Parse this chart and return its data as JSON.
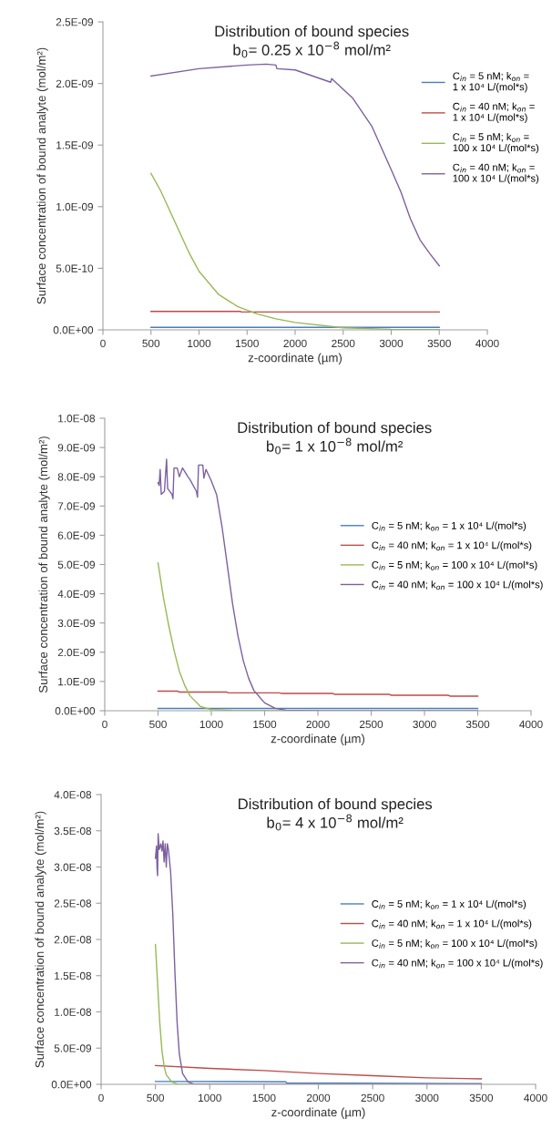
{
  "chart_data": [
    {
      "type": "line",
      "title": "Distribution of bound species",
      "subtitle": "b$_{0}$= 0.25 x 10$^{−8}$ mol/m²",
      "xlabel": "z-coordinate (µm)",
      "ylabel": "Surface concentration of bound analyte (mol/m²)",
      "xlim": [
        0,
        4000
      ],
      "xticks": [
        0,
        500,
        1000,
        1500,
        2000,
        2500,
        3000,
        3500,
        4000
      ],
      "ylim": [
        0,
        2.5e-09
      ],
      "yticks": [
        {
          "value": 0,
          "label": "0.0E+00"
        },
        {
          "value": 5e-10,
          "label": "5.0E-10"
        },
        {
          "value": 1e-09,
          "label": "1.0E-09"
        },
        {
          "value": 1.5e-09,
          "label": "1.5E-09"
        },
        {
          "value": 2e-09,
          "label": "2.0E-09"
        },
        {
          "value": 2.5e-09,
          "label": "2.5E-09"
        }
      ],
      "grid": false,
      "legend": "right",
      "marker": "none",
      "line_style": "solid",
      "series": [
        {
          "name": "C$_{in}$ = 5 nM; k$_{on}$ =\n1 x 10⁴ L/(mol*s)",
          "color": "#4a7ebb",
          "x": [
            500,
            3500
          ],
          "values": [
            2e-11,
            2e-11
          ]
        },
        {
          "name": "C$_{in}$ = 40 nM; k$_{on}$ =\n1 x 10⁴ L/(mol*s)",
          "color": "#be4b48",
          "x": [
            500,
            1430,
            1440,
            3500
          ],
          "values": [
            1.5e-10,
            1.5e-10,
            1.45e-10,
            1.45e-10
          ]
        },
        {
          "name": "C$_{in}$ = 5 nM; k$_{on}$ =\n100 x 10⁴ L/(mol*s)",
          "color": "#98b954",
          "x": [
            500,
            600,
            700,
            800,
            900,
            1000,
            1200,
            1400,
            1600,
            1800,
            2000,
            2500,
            3000,
            3500
          ],
          "values": [
            1.27e-09,
            1.13e-09,
            9.6e-10,
            7.9e-10,
            6.2e-10,
            4.75e-10,
            2.9e-10,
            1.9e-10,
            1.3e-10,
            9e-11,
            6e-11,
            1.7e-11,
            5e-12,
            3e-12
          ]
        },
        {
          "name": "C$_{in}$ = 40 nM; k$_{on}$ =\n100 x 10⁴ L/(mol*s)",
          "color": "#7d60a0",
          "x": [
            500,
            1000,
            1500,
            1700,
            1800,
            1810,
            2000,
            2370,
            2380,
            2600,
            2800,
            3000,
            3100,
            3200,
            3300,
            3400,
            3500
          ],
          "values": [
            2.06e-09,
            2.12e-09,
            2.15e-09,
            2.157e-09,
            2.15e-09,
            2.12e-09,
            2.11e-09,
            2.01e-09,
            2.04e-09,
            1.88e-09,
            1.65e-09,
            1.3e-09,
            1.12e-09,
            9e-10,
            7.3e-10,
            6.2e-10,
            5.2e-10
          ]
        }
      ]
    },
    {
      "type": "line",
      "title": "Distribution of bound species",
      "subtitle": "b$_{0}$= 1 x 10$^{−8}$ mol/m²",
      "xlabel": "z-coordinate (µm)",
      "ylabel": "Surface concentration of bound analyte (mol/m²)",
      "xlim": [
        0,
        4000
      ],
      "xticks": [
        0,
        500,
        1000,
        1500,
        2000,
        2500,
        3000,
        3500,
        4000
      ],
      "ylim": [
        0,
        1e-08
      ],
      "yticks": [
        {
          "value": 0,
          "label": "0.0E+00"
        },
        {
          "value": 1e-09,
          "label": "1.0E-09"
        },
        {
          "value": 2e-09,
          "label": "2.0E-09"
        },
        {
          "value": 3e-09,
          "label": "3.0E-09"
        },
        {
          "value": 4e-09,
          "label": "4.0E-09"
        },
        {
          "value": 5e-09,
          "label": "5.0E-09"
        },
        {
          "value": 6e-09,
          "label": "6.0E-09"
        },
        {
          "value": 7e-09,
          "label": "7.0E-09"
        },
        {
          "value": 8e-09,
          "label": "8.0E-09"
        },
        {
          "value": 9e-09,
          "label": "9.0E-09"
        },
        {
          "value": 1e-08,
          "label": "1.0E-08"
        }
      ],
      "grid": false,
      "legend": "right",
      "marker": "none",
      "line_style": "solid",
      "series": [
        {
          "name": "C$_{in}$ = 5 nM; k$_{on}$ = 1 x 10⁴ L/(mol*s)",
          "color": "#4a7ebb",
          "x": [
            500,
            3500
          ],
          "values": [
            8e-11,
            8e-11
          ]
        },
        {
          "name": "C$_{in}$ = 40 nM; k$_{on}$ = 1 x 10⁴ L/(mol*s)",
          "color": "#be4b48",
          "x": [
            500,
            680,
            700,
            1140,
            1160,
            1640,
            1660,
            2140,
            2160,
            2670,
            2690,
            3220,
            3240,
            3500
          ],
          "values": [
            6.7e-10,
            6.7e-10,
            6.4e-10,
            6.4e-10,
            6.1e-10,
            6.1e-10,
            5.9e-10,
            5.9e-10,
            5.6e-10,
            5.6e-10,
            5.3e-10,
            5.3e-10,
            5e-10,
            5e-10
          ]
        },
        {
          "name": "C$_{in}$ = 5 nM; k$_{on}$ = 100 x 10⁴ L/(mol*s)",
          "color": "#98b954",
          "x": [
            500,
            550,
            600,
            650,
            700,
            750,
            800,
            900,
            1000,
            1200,
            2000
          ],
          "values": [
            5.05e-09,
            3.88e-09,
            2.92e-09,
            2.07e-09,
            1.35e-09,
            8.7e-10,
            5.1e-10,
            1.4e-10,
            4e-11,
            1e-11,
            0
          ]
        },
        {
          "name": "C$_{in}$ = 40 nM; k$_{on}$ = 100 x 10⁴ L/(mol*s)",
          "color": "#7d60a0",
          "x": [
            500,
            510,
            520,
            530,
            560,
            580,
            590,
            630,
            640,
            650,
            680,
            700,
            730,
            780,
            800,
            860,
            870,
            880,
            920,
            930,
            950,
            1000,
            1050,
            1100,
            1150,
            1200,
            1250,
            1300,
            1350,
            1400,
            1500,
            1600,
            1700,
            2000,
            3500
          ],
          "values": [
            7.8e-09,
            7.7e-09,
            8.25e-09,
            7.4e-09,
            7.5e-09,
            8.6e-09,
            7.6e-09,
            7.4e-09,
            7.25e-09,
            8.3e-09,
            8.3e-09,
            8e-09,
            8.3e-09,
            8e-09,
            7.9e-09,
            7.5e-09,
            7.3e-09,
            8.4e-09,
            8.4e-09,
            7.95e-09,
            8.25e-09,
            7.86e-09,
            7.38e-09,
            6.3e-09,
            4.97e-09,
            3.64e-09,
            2.56e-09,
            1.71e-09,
            1.11e-09,
            6.9e-10,
            2.7e-10,
            8e-11,
            2e-11,
            5e-12,
            0
          ]
        }
      ]
    },
    {
      "type": "line",
      "title": "Distribution of bound species",
      "subtitle": "b$_{0}$= 4 x 10$^{−8}$ mol/m²",
      "xlabel": "z-coordinate (µm)",
      "ylabel": "Surface concentration of bound analyte (mol/m²)",
      "xlim": [
        0,
        4000
      ],
      "xticks": [
        0,
        500,
        1000,
        1500,
        2000,
        2500,
        3000,
        3500,
        4000
      ],
      "ylim": [
        0,
        4e-08
      ],
      "yticks": [
        {
          "value": 0,
          "label": "0.0E+00"
        },
        {
          "value": 5e-09,
          "label": "5.0E-09"
        },
        {
          "value": 1e-08,
          "label": "1.0E-08"
        },
        {
          "value": 1.5e-08,
          "label": "1.5E-08"
        },
        {
          "value": 2e-08,
          "label": "2.0E-08"
        },
        {
          "value": 2.5e-08,
          "label": "2.5E-08"
        },
        {
          "value": 3e-08,
          "label": "3.0E-08"
        },
        {
          "value": 3.5e-08,
          "label": "3.5E-08"
        },
        {
          "value": 4e-08,
          "label": "4.0E-08"
        }
      ],
      "grid": false,
      "legend": "right",
      "marker": "none",
      "line_style": "solid",
      "series": [
        {
          "name": "C$_{in}$ = 5 nM; k$_{on}$ = 1 x 10⁴ L/(mol*s)",
          "color": "#4a7ebb",
          "x": [
            500,
            1700,
            1710,
            3500
          ],
          "values": [
            4e-10,
            3.5e-10,
            2e-10,
            1e-10
          ]
        },
        {
          "name": "C$_{in}$ = 40 nM; k$_{on}$ = 1 x 10⁴ L/(mol*s)",
          "color": "#be4b48",
          "x": [
            500,
            1000,
            1500,
            2000,
            2500,
            3000,
            3500
          ],
          "values": [
            2.6e-09,
            2.2e-09,
            1.9e-09,
            1.5e-09,
            1.2e-09,
            9e-10,
            7.5e-10
          ]
        },
        {
          "name": "C$_{in}$ = 5 nM; k$_{on}$ = 100 x 10⁴ L/(mol*s)",
          "color": "#98b954",
          "x": [
            500,
            520,
            540,
            560,
            580,
            600,
            650,
            700,
            1000
          ],
          "values": [
            1.93e-08,
            1.39e-08,
            8.5e-09,
            4.7e-09,
            2.5e-09,
            1.3e-09,
            3.4e-10,
            5e-11,
            0
          ]
        },
        {
          "name": "C$_{in}$ = 40 nM; k$_{on}$ = 100 x 10⁴ L/(mol*s)",
          "color": "#7d60a0",
          "x": [
            500,
            510,
            515,
            520,
            525,
            535,
            550,
            560,
            570,
            580,
            590,
            600,
            610,
            620,
            640,
            660,
            680,
            700,
            720,
            750,
            800,
            850,
            1000,
            3500
          ],
          "values": [
            3.12e-08,
            3.29e-08,
            2.98e-08,
            2.88e-08,
            3.46e-08,
            3.24e-08,
            3.32e-08,
            3.22e-08,
            3.36e-08,
            3.07e-08,
            3.32e-08,
            3e-08,
            3.32e-08,
            3.24e-08,
            2.93e-08,
            2.35e-08,
            1.53e-08,
            8.5e-09,
            4.2e-09,
            1.5e-09,
            3.4e-10,
            5e-11,
            0,
            0
          ]
        }
      ]
    }
  ]
}
